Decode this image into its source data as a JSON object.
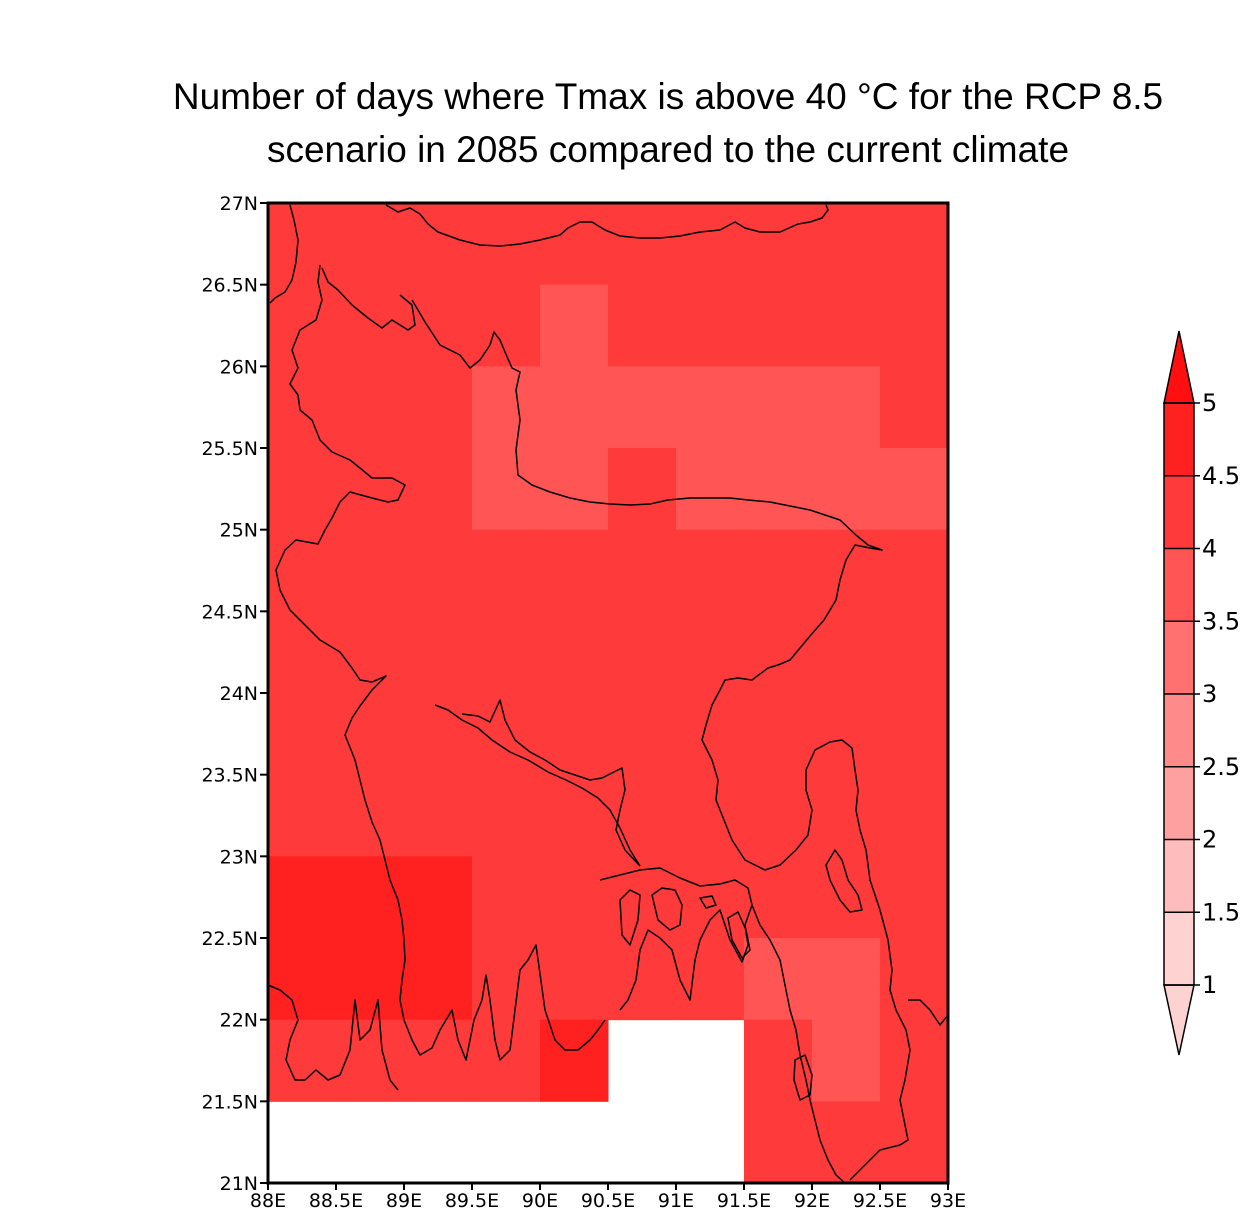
{
  "title": {
    "line1": "Number of days where Tmax is above 40 °C for the RCP 8.5",
    "line2": "scenario in 2085 compared to the current climate"
  },
  "chart_data": {
    "type": "heatmap",
    "lon_range": [
      88,
      93
    ],
    "lat_range": [
      21,
      27
    ],
    "cell_size_deg": 0.5,
    "x_ticks": [
      "88E",
      "88.5E",
      "89E",
      "89.5E",
      "90E",
      "90.5E",
      "91E",
      "91.5E",
      "92E",
      "92.5E",
      "93E"
    ],
    "y_ticks": [
      "21N",
      "21.5N",
      "22N",
      "22.5N",
      "23N",
      "23.5N",
      "24N",
      "24.5N",
      "25N",
      "25.5N",
      "26N",
      "26.5N",
      "27N"
    ],
    "grid_rows_from_north": [
      [
        4.25,
        4.25,
        4.25,
        4.25,
        4.25,
        4.25,
        4.25,
        4.25,
        4.25,
        4.25
      ],
      [
        4.25,
        4.25,
        4.25,
        4.25,
        3.75,
        4.25,
        4.25,
        4.25,
        4.25,
        4.25
      ],
      [
        4.25,
        4.25,
        4.25,
        3.75,
        3.75,
        3.75,
        3.75,
        3.75,
        3.75,
        4.25
      ],
      [
        4.25,
        4.25,
        4.25,
        3.75,
        3.75,
        4.25,
        3.75,
        3.75,
        3.75,
        3.75
      ],
      [
        4.25,
        4.25,
        4.25,
        4.25,
        4.25,
        4.25,
        4.25,
        4.25,
        4.25,
        4.25
      ],
      [
        4.25,
        4.25,
        4.25,
        4.25,
        4.25,
        4.25,
        4.25,
        4.25,
        4.25,
        4.25
      ],
      [
        4.25,
        4.25,
        4.25,
        4.25,
        4.25,
        4.25,
        4.25,
        4.25,
        4.25,
        4.25
      ],
      [
        4.25,
        4.25,
        4.25,
        4.25,
        4.25,
        4.25,
        4.25,
        4.25,
        4.25,
        4.25
      ],
      [
        4.75,
        4.75,
        4.75,
        4.25,
        4.25,
        4.25,
        4.25,
        4.25,
        4.25,
        4.25
      ],
      [
        4.75,
        4.75,
        4.75,
        4.25,
        4.25,
        4.25,
        4.25,
        3.75,
        3.75,
        4.25
      ],
      [
        4.25,
        4.25,
        4.25,
        4.25,
        4.75,
        null,
        null,
        4.25,
        3.75,
        4.25
      ],
      [
        null,
        null,
        null,
        null,
        null,
        null,
        null,
        4.25,
        4.25,
        4.25
      ]
    ],
    "colorbar": {
      "labels": [
        "1",
        "1.5",
        "2",
        "2.5",
        "3",
        "3.5",
        "4",
        "4.5",
        "5"
      ],
      "levels": [
        1,
        1.5,
        2,
        2.5,
        3,
        3.5,
        4,
        4.5,
        5
      ],
      "colors": [
        "#ffd2d2",
        "#ffbcbc",
        "#ffa0a0",
        "#ff8a8a",
        "#ff7070",
        "#ff5555",
        "#ff3a3a",
        "#ff2020",
        "#ff0f0f"
      ],
      "extend": "both"
    }
  }
}
